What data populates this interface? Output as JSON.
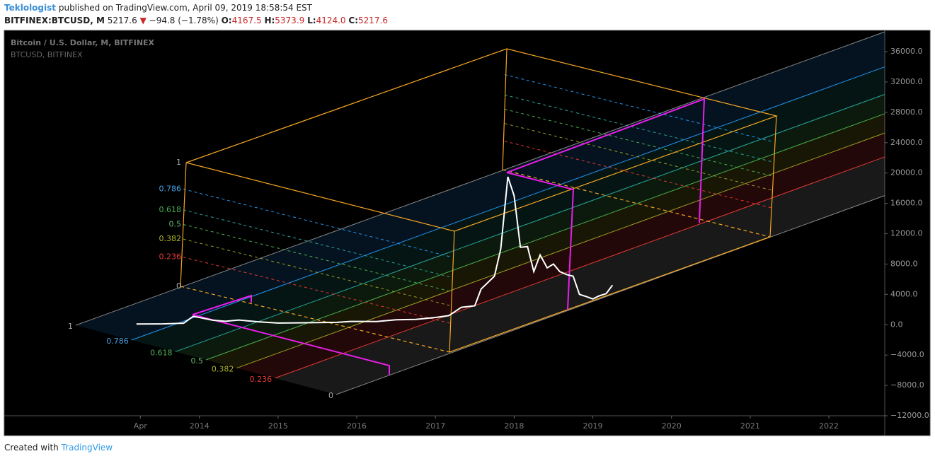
{
  "header": {
    "author": "Teklologist",
    "published": "published on TradingView.com, April 09, 2019 18:58:54 EST",
    "symbol": "BITFINEX:BTCUSD, M",
    "last": "5217.6",
    "change_arrow": "▼",
    "change": "−94.8 (−1.78%)",
    "ohlc": [
      {
        "key": "O:",
        "value": "4167.5"
      },
      {
        "key": "H:",
        "value": "5373.9"
      },
      {
        "key": "L:",
        "value": "4124.0"
      },
      {
        "key": "C:",
        "value": "5217.6"
      }
    ]
  },
  "chart_data": {
    "type": "line",
    "title": "Bitcoin / U.S. Dollar, M, BITFINEX",
    "subtitle": "BTCUSD, BITFINEX",
    "x": [
      2013.2,
      2013.5,
      2013.8,
      2013.92,
      2014.0,
      2014.17,
      2014.33,
      2014.5,
      2014.75,
      2015.0,
      2015.25,
      2015.5,
      2015.75,
      2015.92,
      2016.25,
      2016.5,
      2016.75,
      2017.0,
      2017.17,
      2017.33,
      2017.5,
      2017.58,
      2017.75,
      2017.83,
      2017.92,
      2018.0,
      2018.08,
      2018.17,
      2018.25,
      2018.33,
      2018.42,
      2018.5,
      2018.58,
      2018.67,
      2018.75,
      2018.83,
      2018.92,
      2019.0,
      2019.08,
      2019.17,
      2019.25
    ],
    "series": [
      {
        "color": "#ffffff",
        "values": [
          90,
          100,
          200,
          1100,
          950,
          600,
          450,
          620,
          380,
          220,
          240,
          280,
          320,
          430,
          420,
          650,
          700,
          960,
          1200,
          2300,
          2500,
          4700,
          6400,
          10000,
          19500,
          17000,
          10200,
          10300,
          7000,
          9200,
          7500,
          8000,
          7000,
          6600,
          6400,
          4000,
          3700,
          3400,
          3800,
          4100,
          5217.6
        ]
      }
    ],
    "xlim": [
      2011.52,
      2022.71
    ],
    "xticks": [
      {
        "value": 2013.25,
        "label": "Apr"
      },
      2014,
      2015,
      2016,
      2017,
      2018,
      2019,
      2020,
      2021,
      2022
    ],
    "ylim": [
      -12000,
      38800
    ],
    "yticks": [
      {
        "value": -12000,
        "label": "−12000.0"
      },
      {
        "value": -8000,
        "label": "−8000.0"
      },
      {
        "value": -4000,
        "label": "−4000.0"
      },
      {
        "value": 0,
        "label": "0.0"
      },
      {
        "value": 4000,
        "label": "4000.0"
      },
      {
        "value": 8000,
        "label": "8000.0"
      },
      {
        "value": 12000,
        "label": "12000.0"
      },
      {
        "value": 16000,
        "label": "16000.0"
      },
      {
        "value": 20000,
        "label": "20000.0"
      },
      {
        "value": 24000,
        "label": "24000.0"
      },
      {
        "value": 28000,
        "label": "28000.0"
      },
      {
        "value": 32000,
        "label": "32000.0"
      },
      {
        "value": 36000,
        "label": "36000.0"
      }
    ],
    "fib_labels_wall": [
      "1",
      "0.786",
      "0.618",
      "0.5",
      "0.382",
      "0.236",
      "0"
    ],
    "fib_labels_floor": [
      "1",
      "0.786",
      "0.618",
      "0.5",
      "0.382",
      "0.236",
      "0"
    ]
  },
  "footer": {
    "created": "Created with",
    "brand": "TradingView"
  }
}
